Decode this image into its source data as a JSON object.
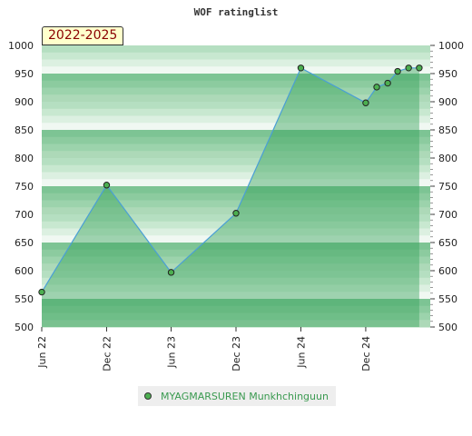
{
  "chart_data": {
    "type": "area",
    "title": "WOF ratinglist",
    "badge": "2022-2025",
    "ylim": [
      500,
      1000
    ],
    "yticks": [
      500,
      550,
      600,
      650,
      700,
      750,
      800,
      850,
      900,
      950,
      1000
    ],
    "xlim": [
      "2022-06-01",
      "2025-06-01"
    ],
    "xticks": [
      {
        "date": "2022-06-01",
        "label": "Jun 22"
      },
      {
        "date": "2022-12-01",
        "label": "Dec 22"
      },
      {
        "date": "2023-06-01",
        "label": "Jun 23"
      },
      {
        "date": "2023-12-01",
        "label": "Dec 23"
      },
      {
        "date": "2024-06-01",
        "label": "Jun 24"
      },
      {
        "date": "2024-12-01",
        "label": "Dec 24"
      }
    ],
    "series": [
      {
        "name": "MYAGMARSUREN Munkhchinguun",
        "color": "#4caf50",
        "points": [
          {
            "x": "2022-06-01",
            "y": 562
          },
          {
            "x": "2022-12-01",
            "y": 752
          },
          {
            "x": "2023-06-01",
            "y": 597
          },
          {
            "x": "2023-12-01",
            "y": 702
          },
          {
            "x": "2024-06-01",
            "y": 960
          },
          {
            "x": "2024-12-01",
            "y": 898
          },
          {
            "x": "2025-01-01",
            "y": 926
          },
          {
            "x": "2025-02-01",
            "y": 933
          },
          {
            "x": "2025-03-01",
            "y": 954
          },
          {
            "x": "2025-04-01",
            "y": 960
          },
          {
            "x": "2025-05-01",
            "y": 960
          }
        ]
      }
    ],
    "grid": true,
    "legend": "bottom"
  }
}
